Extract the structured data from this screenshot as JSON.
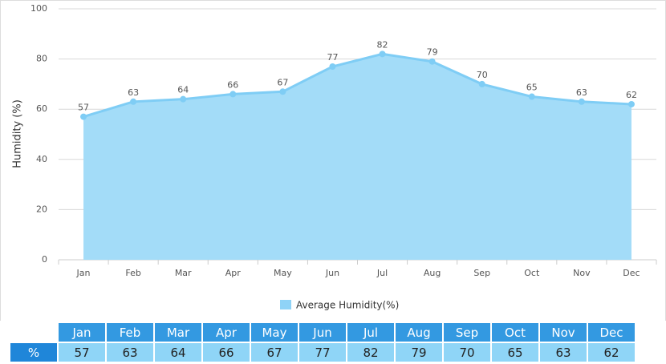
{
  "chart_data": {
    "type": "area",
    "y_label": "Humidity (%)",
    "categories": [
      "Jan",
      "Feb",
      "Mar",
      "Apr",
      "May",
      "Jun",
      "Jul",
      "Aug",
      "Sep",
      "Oct",
      "Nov",
      "Dec"
    ],
    "series": [
      {
        "name": "Average Humidity(%)",
        "color": "#8fd3f7",
        "values": [
          57,
          63,
          64,
          66,
          67,
          77,
          82,
          79,
          70,
          65,
          63,
          62
        ]
      }
    ],
    "ylim": [
      0,
      100
    ],
    "yticks": [
      0,
      20,
      40,
      60,
      80,
      100
    ],
    "grid": true
  },
  "table": {
    "row_label": "%"
  }
}
